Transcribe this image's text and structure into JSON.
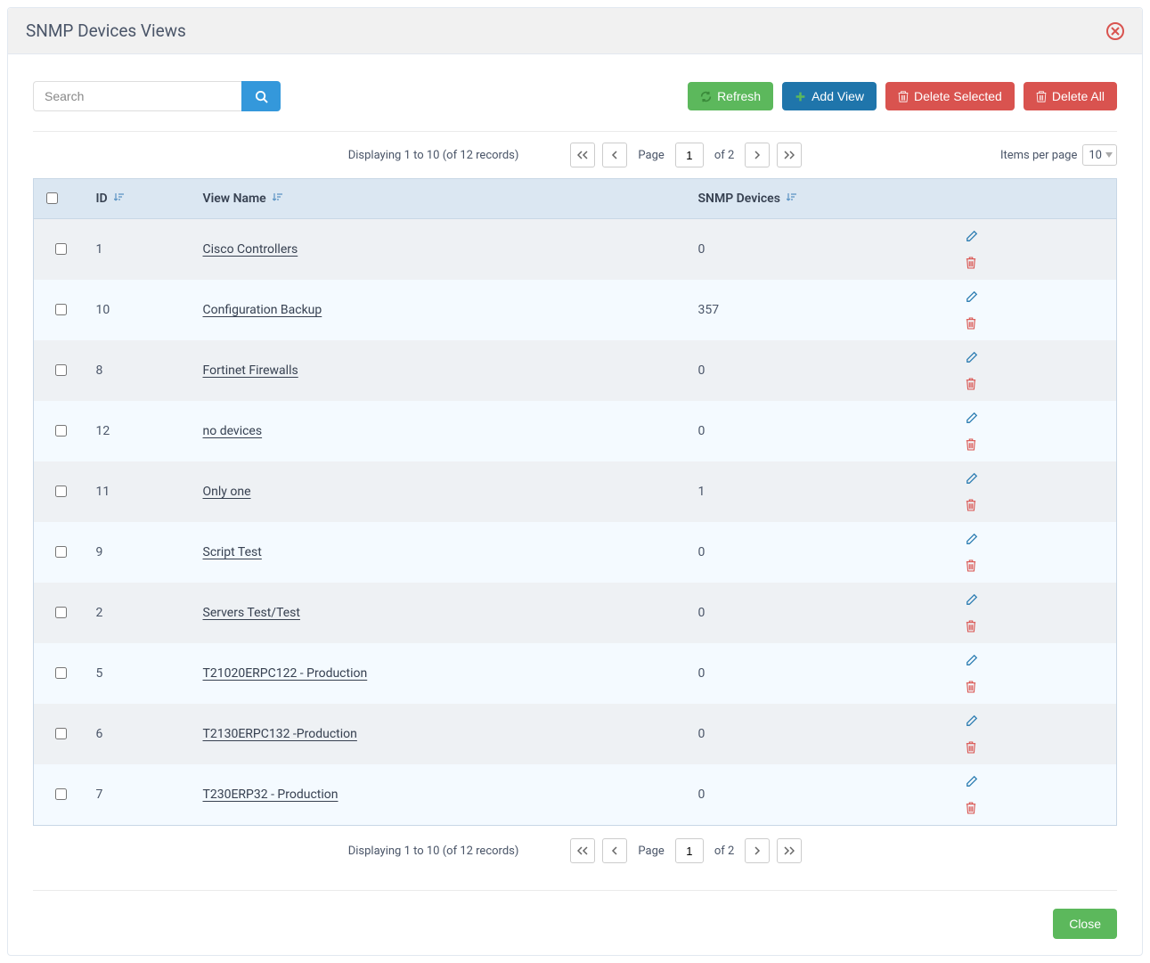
{
  "modal": {
    "title": "SNMP Devices Views"
  },
  "search": {
    "placeholder": "Search",
    "value": ""
  },
  "buttons": {
    "refresh": "Refresh",
    "add_view": "Add View",
    "delete_selected": "Delete Selected",
    "delete_all": "Delete All",
    "close": "Close"
  },
  "table": {
    "columns": {
      "id": "ID",
      "view_name": "View Name",
      "snmp_devices": "SNMP Devices"
    },
    "rows": [
      {
        "id": "1",
        "name": "Cisco Controllers",
        "devices": "0"
      },
      {
        "id": "10",
        "name": "Configuration Backup",
        "devices": "357"
      },
      {
        "id": "8",
        "name": "Fortinet Firewalls",
        "devices": "0"
      },
      {
        "id": "12",
        "name": "no devices",
        "devices": "0"
      },
      {
        "id": "11",
        "name": "Only one",
        "devices": "1"
      },
      {
        "id": "9",
        "name": "Script Test",
        "devices": "0"
      },
      {
        "id": "2",
        "name": "Servers Test/Test",
        "devices": "0"
      },
      {
        "id": "5",
        "name": "T21020ERPC122 - Production",
        "devices": "0"
      },
      {
        "id": "6",
        "name": "T2130ERPC132 -Production",
        "devices": "0"
      },
      {
        "id": "7",
        "name": "T230ERP32 - Production",
        "devices": "0"
      }
    ]
  },
  "pagination": {
    "display_text": "Displaying 1 to 10 (of 12 records)",
    "page_label": "Page",
    "current_page": "1",
    "of_total": "of 2",
    "items_per_page_label": "Items per page",
    "items_per_page_value": "10"
  },
  "colors": {
    "header_bg": "#f1f1f1",
    "table_header_bg": "#dbe7f2",
    "row_odd": "#eef1f4",
    "row_even": "#f4faff",
    "btn_green": "#5cb85c",
    "btn_blue": "#1f75ab",
    "btn_red": "#d9534f",
    "icon_blue": "#307fb3",
    "search_blue": "#3498db"
  }
}
